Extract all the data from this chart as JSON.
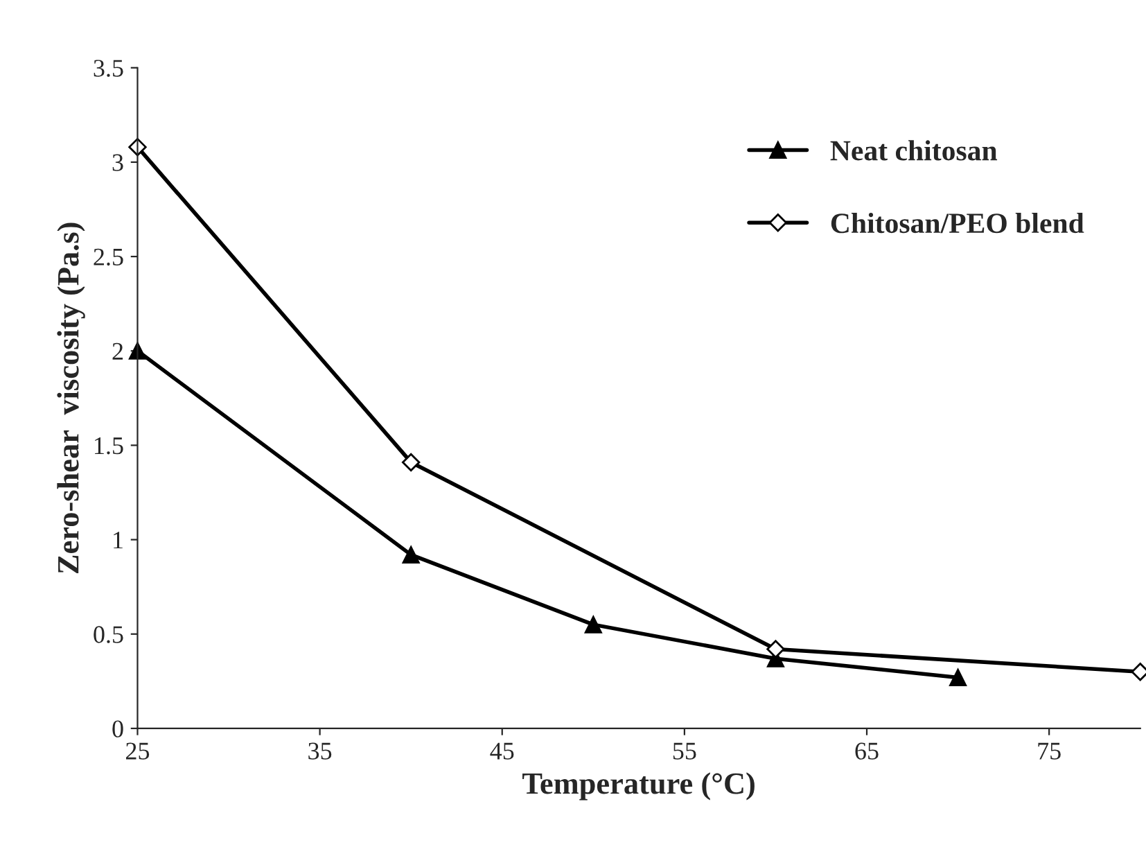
{
  "chart_data": {
    "type": "line",
    "xlabel": "Temperature (°C)",
    "ylabel": "Zero-shear  viscosity (Pa.s)",
    "xlim": [
      25,
      80
    ],
    "xticks": [
      25,
      35,
      45,
      55,
      65,
      75
    ],
    "ylim": [
      0,
      3.5
    ],
    "yticks": [
      0,
      0.5,
      1,
      1.5,
      2,
      2.5,
      3,
      3.5
    ],
    "grid": false,
    "legend": "top right",
    "line_style": "solid",
    "series": [
      {
        "name": "Neat chitosan",
        "color": "#000000",
        "marker": "triangle",
        "x": [
          25,
          40,
          50,
          60,
          70
        ],
        "values": [
          2.0,
          0.92,
          0.55,
          0.37,
          0.27
        ]
      },
      {
        "name": "Chitosan/PEO blend",
        "color": "#000000",
        "marker": "diamond",
        "x": [
          25,
          40,
          60,
          80
        ],
        "values": [
          3.08,
          1.41,
          0.42,
          0.3
        ]
      }
    ]
  }
}
